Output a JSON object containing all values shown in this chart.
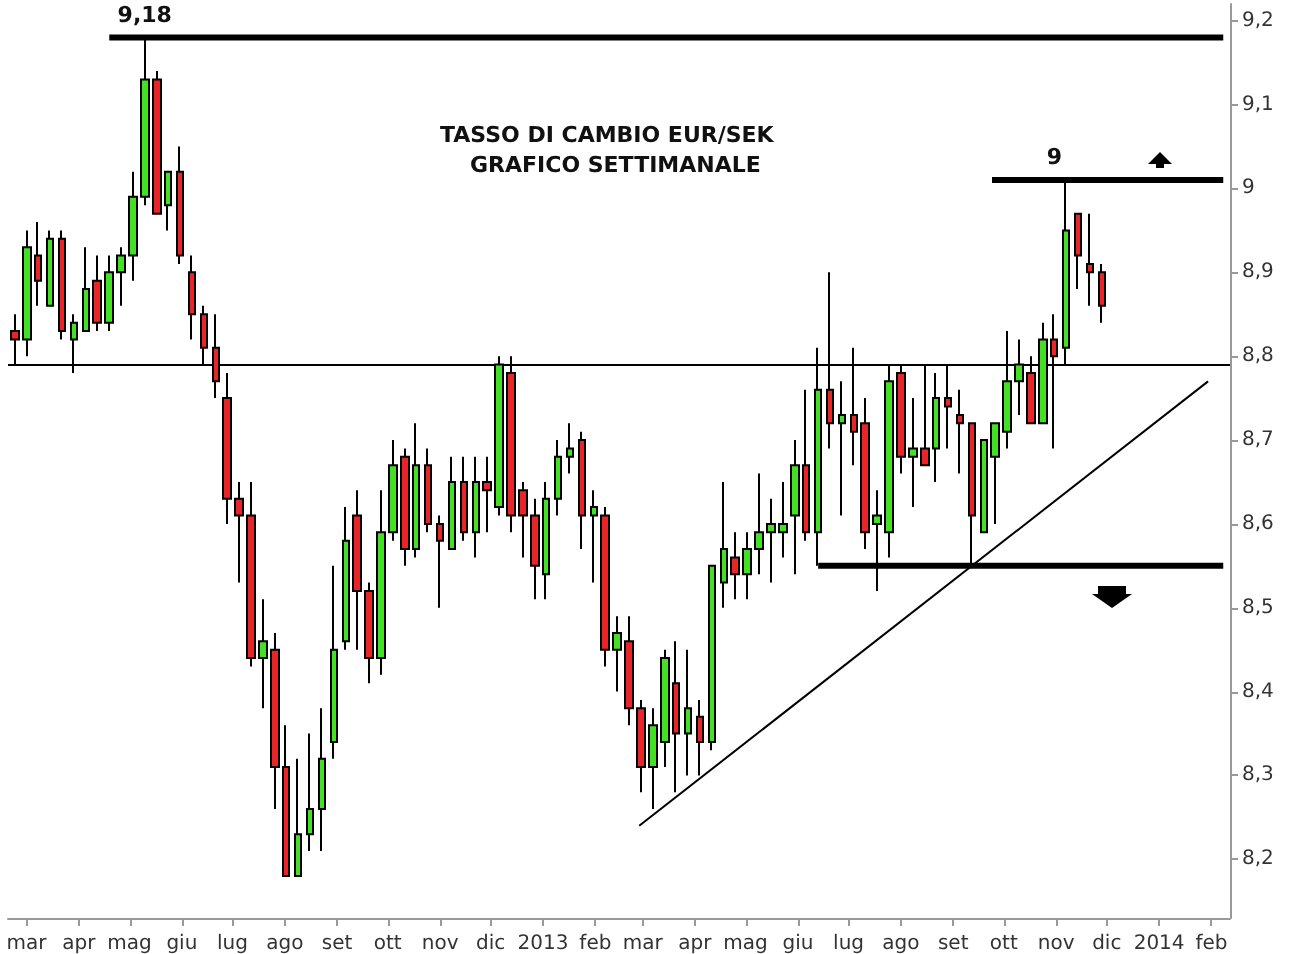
{
  "chart_data": {
    "type": "candlestick",
    "title": "TASSO DI CAMBIO EUR/SEK",
    "subtitle": "GRAFICO SETTIMANALE",
    "x": [
      "2012-02-23",
      "2012-03-01",
      "2012-03-08",
      "2012-03-15",
      "2012-03-22",
      "2012-03-29",
      "2012-04-05",
      "2012-04-12",
      "2012-04-19",
      "2012-04-26",
      "2012-05-03",
      "2012-05-10",
      "2012-05-17",
      "2012-05-24",
      "2012-05-31",
      "2012-06-07",
      "2012-06-14",
      "2012-06-21",
      "2012-06-28",
      "2012-07-05",
      "2012-07-12",
      "2012-07-19",
      "2012-07-26",
      "2012-08-02",
      "2012-08-09",
      "2012-08-16",
      "2012-08-23",
      "2012-08-30",
      "2012-09-06",
      "2012-09-13",
      "2012-09-20",
      "2012-09-27",
      "2012-10-04",
      "2012-10-11",
      "2012-10-18",
      "2012-10-25",
      "2012-11-01",
      "2012-11-08",
      "2012-11-15",
      "2012-11-22",
      "2012-11-29",
      "2012-12-06",
      "2012-12-13",
      "2012-12-20",
      "2012-12-27",
      "2013-01-03",
      "2013-01-10",
      "2013-01-17",
      "2013-01-24",
      "2013-01-31",
      "2013-02-07",
      "2013-02-14",
      "2013-02-21",
      "2013-02-28",
      "2013-03-07",
      "2013-03-14",
      "2013-03-21",
      "2013-03-28",
      "2013-04-04",
      "2013-04-11",
      "2013-04-18",
      "2013-04-25",
      "2013-05-02",
      "2013-05-09",
      "2013-05-16",
      "2013-05-23",
      "2013-05-30",
      "2013-06-06",
      "2013-06-13",
      "2013-06-20",
      "2013-06-27",
      "2013-07-04",
      "2013-07-11",
      "2013-07-18",
      "2013-07-25",
      "2013-08-01",
      "2013-08-08",
      "2013-08-15",
      "2013-08-22",
      "2013-08-29",
      "2013-09-05",
      "2013-09-12",
      "2013-09-19",
      "2013-09-26",
      "2013-10-03",
      "2013-10-10",
      "2013-10-17",
      "2013-10-24",
      "2013-10-31",
      "2013-11-07",
      "2013-11-14",
      "2013-11-21",
      "2013-11-28"
    ],
    "ohlc": [
      [
        8.83,
        8.85,
        8.79,
        8.82
      ],
      [
        8.82,
        8.95,
        8.8,
        8.93
      ],
      [
        8.92,
        8.96,
        8.86,
        8.89
      ],
      [
        8.86,
        8.95,
        8.86,
        8.94
      ],
      [
        8.94,
        8.95,
        8.82,
        8.83
      ],
      [
        8.82,
        8.85,
        8.78,
        8.84
      ],
      [
        8.83,
        8.93,
        8.83,
        8.88
      ],
      [
        8.89,
        8.92,
        8.83,
        8.84
      ],
      [
        8.84,
        8.92,
        8.83,
        8.9
      ],
      [
        8.9,
        8.93,
        8.86,
        8.92
      ],
      [
        8.92,
        9.02,
        8.89,
        8.99
      ],
      [
        8.99,
        9.18,
        8.98,
        9.13
      ],
      [
        9.13,
        9.14,
        8.97,
        8.97
      ],
      [
        8.98,
        9.02,
        8.95,
        9.02
      ],
      [
        9.02,
        9.05,
        8.91,
        8.92
      ],
      [
        8.9,
        8.92,
        8.82,
        8.85
      ],
      [
        8.85,
        8.86,
        8.79,
        8.81
      ],
      [
        8.81,
        8.85,
        8.75,
        8.77
      ],
      [
        8.75,
        8.78,
        8.6,
        8.63
      ],
      [
        8.63,
        8.65,
        8.53,
        8.61
      ],
      [
        8.61,
        8.65,
        8.43,
        8.44
      ],
      [
        8.44,
        8.51,
        8.38,
        8.46
      ],
      [
        8.45,
        8.47,
        8.26,
        8.31
      ],
      [
        8.31,
        8.36,
        8.18,
        8.18
      ],
      [
        8.18,
        8.32,
        8.18,
        8.23
      ],
      [
        8.23,
        8.35,
        8.21,
        8.26
      ],
      [
        8.26,
        8.38,
        8.21,
        8.32
      ],
      [
        8.34,
        8.55,
        8.32,
        8.45
      ],
      [
        8.46,
        8.62,
        8.45,
        8.58
      ],
      [
        8.61,
        8.64,
        8.45,
        8.52
      ],
      [
        8.52,
        8.53,
        8.41,
        8.44
      ],
      [
        8.44,
        8.64,
        8.42,
        8.59
      ],
      [
        8.59,
        8.7,
        8.58,
        8.67
      ],
      [
        8.68,
        8.69,
        8.55,
        8.57
      ],
      [
        8.57,
        8.72,
        8.56,
        8.67
      ],
      [
        8.67,
        8.69,
        8.59,
        8.6
      ],
      [
        8.6,
        8.61,
        8.5,
        8.58
      ],
      [
        8.57,
        8.68,
        8.57,
        8.65
      ],
      [
        8.65,
        8.68,
        8.58,
        8.59
      ],
      [
        8.59,
        8.68,
        8.56,
        8.65
      ],
      [
        8.65,
        8.68,
        8.59,
        8.64
      ],
      [
        8.62,
        8.8,
        8.61,
        8.79
      ],
      [
        8.78,
        8.8,
        8.59,
        8.61
      ],
      [
        8.64,
        8.65,
        8.56,
        8.61
      ],
      [
        8.61,
        8.63,
        8.51,
        8.55
      ],
      [
        8.54,
        8.65,
        8.51,
        8.63
      ],
      [
        8.63,
        8.7,
        8.61,
        8.68
      ],
      [
        8.68,
        8.72,
        8.66,
        8.69
      ],
      [
        8.7,
        8.71,
        8.57,
        8.61
      ],
      [
        8.61,
        8.64,
        8.53,
        8.62
      ],
      [
        8.61,
        8.62,
        8.43,
        8.45
      ],
      [
        8.45,
        8.49,
        8.4,
        8.47
      ],
      [
        8.46,
        8.49,
        8.36,
        8.38
      ],
      [
        8.38,
        8.39,
        8.28,
        8.31
      ],
      [
        8.31,
        8.38,
        8.26,
        8.36
      ],
      [
        8.34,
        8.45,
        8.31,
        8.44
      ],
      [
        8.41,
        8.46,
        8.28,
        8.35
      ],
      [
        8.35,
        8.45,
        8.3,
        8.38
      ],
      [
        8.37,
        8.39,
        8.3,
        8.34
      ],
      [
        8.34,
        8.55,
        8.33,
        8.55
      ],
      [
        8.53,
        8.65,
        8.5,
        8.57
      ],
      [
        8.56,
        8.59,
        8.51,
        8.54
      ],
      [
        8.54,
        8.59,
        8.51,
        8.57
      ],
      [
        8.57,
        8.66,
        8.54,
        8.59
      ],
      [
        8.59,
        8.63,
        8.53,
        8.6
      ],
      [
        8.59,
        8.65,
        8.56,
        8.6
      ],
      [
        8.61,
        8.7,
        8.54,
        8.67
      ],
      [
        8.67,
        8.76,
        8.58,
        8.59
      ],
      [
        8.59,
        8.81,
        8.55,
        8.76
      ],
      [
        8.76,
        8.9,
        8.69,
        8.72
      ],
      [
        8.72,
        8.77,
        8.61,
        8.73
      ],
      [
        8.73,
        8.81,
        8.67,
        8.71
      ],
      [
        8.72,
        8.75,
        8.57,
        8.59
      ],
      [
        8.6,
        8.64,
        8.52,
        8.61
      ],
      [
        8.59,
        8.79,
        8.56,
        8.77
      ],
      [
        8.78,
        8.79,
        8.66,
        8.68
      ],
      [
        8.68,
        8.75,
        8.62,
        8.69
      ],
      [
        8.69,
        8.79,
        8.67,
        8.67
      ],
      [
        8.69,
        8.78,
        8.65,
        8.75
      ],
      [
        8.75,
        8.79,
        8.69,
        8.74
      ],
      [
        8.73,
        8.76,
        8.66,
        8.72
      ],
      [
        8.72,
        8.72,
        8.55,
        8.61
      ],
      [
        8.59,
        8.7,
        8.59,
        8.7
      ],
      [
        8.68,
        8.72,
        8.6,
        8.72
      ],
      [
        8.71,
        8.83,
        8.69,
        8.77
      ],
      [
        8.77,
        8.82,
        8.73,
        8.79
      ],
      [
        8.78,
        8.8,
        8.72,
        8.72
      ],
      [
        8.72,
        8.84,
        8.72,
        8.82
      ],
      [
        8.82,
        8.85,
        8.69,
        8.8
      ],
      [
        8.81,
        9.01,
        8.79,
        8.95
      ],
      [
        8.97,
        8.97,
        8.88,
        8.92
      ],
      [
        8.91,
        8.97,
        8.86,
        8.9
      ],
      [
        8.9,
        8.91,
        8.84,
        8.86
      ]
    ],
    "colors": [
      "#e8262a",
      "#44e026",
      "#e8262a",
      "#44e026",
      "#e8262a",
      "#44e026",
      "#44e026",
      "#e8262a",
      "#44e026",
      "#44e026",
      "#44e026",
      "#44e026",
      "#e8262a",
      "#44e026",
      "#e8262a",
      "#e8262a",
      "#e8262a",
      "#e8262a",
      "#e8262a",
      "#e8262a",
      "#e8262a",
      "#44e026",
      "#e8262a",
      "#e8262a",
      "#44e026",
      "#44e026",
      "#44e026",
      "#44e026",
      "#44e026",
      "#e8262a",
      "#e8262a",
      "#44e026",
      "#44e026",
      "#e8262a",
      "#44e026",
      "#e8262a",
      "#e8262a",
      "#44e026",
      "#e8262a",
      "#44e026",
      "#e8262a",
      "#44e026",
      "#e8262a",
      "#e8262a",
      "#e8262a",
      "#44e026",
      "#44e026",
      "#44e026",
      "#e8262a",
      "#44e026",
      "#e8262a",
      "#44e026",
      "#e8262a",
      "#e8262a",
      "#44e026",
      "#44e026",
      "#e8262a",
      "#44e026",
      "#e8262a",
      "#44e026",
      "#44e026",
      "#e8262a",
      "#44e026",
      "#44e026",
      "#44e026",
      "#44e026",
      "#44e026",
      "#e8262a",
      "#44e026",
      "#e8262a",
      "#44e026",
      "#e8262a",
      "#e8262a",
      "#44e026",
      "#44e026",
      "#e8262a",
      "#44e026",
      "#e8262a",
      "#44e026",
      "#e8262a",
      "#e8262a",
      "#e8262a",
      "#44e026",
      "#44e026",
      "#44e026",
      "#44e026",
      "#e8262a",
      "#44e026",
      "#e8262a",
      "#44e026",
      "#e8262a",
      "#e8262a",
      "#e8262a"
    ],
    "series": [
      {
        "type": "line",
        "color": "#000000",
        "x": [
          "2013-02-27",
          "2014-01-30"
        ],
        "values": [
          8.24,
          8.77
        ]
      },
      {
        "type": "line",
        "color": "#000000",
        "x": [
          "2012-04-19",
          "2014-02-08"
        ],
        "values": [
          9.18,
          9.18
        ]
      },
      {
        "type": "line",
        "color": "#000000",
        "x": [
          "2013-09-24",
          "2014-02-08"
        ],
        "values": [
          9.01,
          9.01
        ]
      },
      {
        "type": "line",
        "color": "#000000",
        "x": [
          "2013-06-13",
          "2014-02-08"
        ],
        "values": [
          8.55,
          8.55
        ]
      }
    ],
    "ref_lines": [
      {
        "axis": "y",
        "value": 8.79,
        "color": "#000000"
      }
    ],
    "annotations": [
      {
        "text": "9,18",
        "x": "2012-05-10",
        "y": 9.18
      },
      {
        "text": "9",
        "x": "2013-10-31",
        "y": 9.01
      }
    ],
    "xlim": [
      "2012-02-19",
      "2014-02-12"
    ],
    "xticks": [
      {
        "value": "2012-03-01",
        "label": "mar"
      },
      {
        "value": "2012-04-01",
        "label": "apr"
      },
      {
        "value": "2012-05-01",
        "label": "mag"
      },
      {
        "value": "2012-06-01",
        "label": "giu"
      },
      {
        "value": "2012-07-01",
        "label": "lug"
      },
      {
        "value": "2012-08-01",
        "label": "ago"
      },
      {
        "value": "2012-09-01",
        "label": "set"
      },
      {
        "value": "2012-10-01",
        "label": "ott"
      },
      {
        "value": "2012-11-01",
        "label": "nov"
      },
      {
        "value": "2012-12-01",
        "label": "dic"
      },
      {
        "value": "2013-01-01",
        "label": "2013"
      },
      {
        "value": "2013-02-01",
        "label": "feb"
      },
      {
        "value": "2013-03-01",
        "label": "mar"
      },
      {
        "value": "2013-04-01",
        "label": "apr"
      },
      {
        "value": "2013-05-01",
        "label": "mag"
      },
      {
        "value": "2013-06-01",
        "label": "giu"
      },
      {
        "value": "2013-07-01",
        "label": "lug"
      },
      {
        "value": "2013-08-01",
        "label": "ago"
      },
      {
        "value": "2013-09-01",
        "label": "set"
      },
      {
        "value": "2013-10-01",
        "label": "ott"
      },
      {
        "value": "2013-11-01",
        "label": "nov"
      },
      {
        "value": "2013-12-01",
        "label": "dic"
      },
      {
        "value": "2014-01-01",
        "label": "2014"
      },
      {
        "value": "2014-02-01",
        "label": "feb"
      }
    ],
    "ylim": [
      8.13,
      9.22
    ],
    "yticks": [
      {
        "value": 8.2,
        "label": "8,2"
      },
      {
        "value": 8.3,
        "label": "8,3"
      },
      {
        "value": 8.4,
        "label": "8,4"
      },
      {
        "value": 8.5,
        "label": "8,5"
      },
      {
        "value": 8.6,
        "label": "8,6"
      },
      {
        "value": 8.7,
        "label": "8,7"
      },
      {
        "value": 8.8,
        "label": "8,8"
      },
      {
        "value": 8.9,
        "label": "8,9"
      },
      {
        "value": 9,
        "label": "9"
      },
      {
        "value": 9.1,
        "label": "9,1"
      },
      {
        "value": 9.2,
        "label": "9,2"
      }
    ],
    "grid": false
  }
}
